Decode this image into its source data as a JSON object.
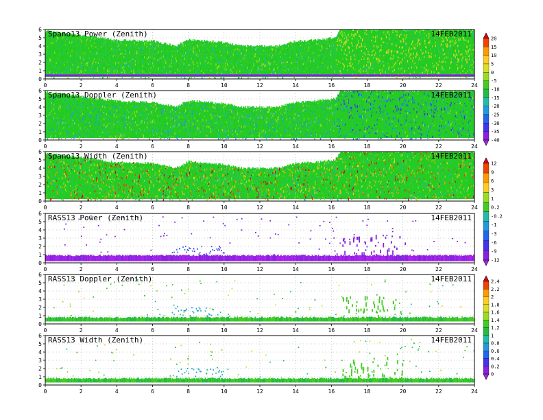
{
  "date": "14FEB2011",
  "xaxis": {
    "range": [
      0,
      24
    ],
    "ticks": [
      0,
      2,
      4,
      6,
      8,
      10,
      12,
      14,
      16,
      18,
      20,
      22,
      24
    ],
    "tick_labels": [
      "0",
      "2",
      "4",
      "6",
      "8",
      "10",
      "12",
      "14",
      "16",
      "18",
      "20",
      "22",
      "24"
    ]
  },
  "yaxis": {
    "range": [
      0,
      6
    ],
    "ticks": [
      0,
      1,
      2,
      3,
      4,
      5,
      6
    ],
    "tick_labels": [
      "0",
      "1",
      "2",
      "3",
      "4",
      "5",
      "6"
    ]
  },
  "chart_data": [
    {
      "type": "heatmap",
      "title": "Spano13 Power (Zenith)",
      "date_label": "14FEB2011",
      "colorbar": "power",
      "xlim": [
        0,
        24
      ],
      "ylim": [
        0,
        6
      ],
      "dominant_color": "#22cc22"
    },
    {
      "type": "heatmap",
      "title": "Spano13 Doppler (Zenith)",
      "date_label": "14FEB2011",
      "colorbar": "power",
      "xlim": [
        0,
        24
      ],
      "ylim": [
        0,
        6
      ],
      "dominant_color": "#22cc22"
    },
    {
      "type": "heatmap",
      "title": "Spano13 Width (Zenith)",
      "date_label": "14FEB2011",
      "colorbar": "width",
      "xlim": [
        0,
        24
      ],
      "ylim": [
        0,
        6
      ],
      "dominant_color": "#22cc22"
    },
    {
      "type": "heatmap",
      "title": "RASS13 Power (Zenith)",
      "date_label": "14FEB2011",
      "colorbar": "width",
      "xlim": [
        0,
        24
      ],
      "ylim": [
        0,
        6
      ],
      "dominant_color": "#8822ee"
    },
    {
      "type": "heatmap",
      "title": "RASS13 Doppler (Zenith)",
      "date_label": "14FEB2011",
      "colorbar": "rass",
      "xlim": [
        0,
        24
      ],
      "ylim": [
        0,
        6
      ],
      "dominant_color": "#22cc22"
    },
    {
      "type": "heatmap",
      "title": "RASS13 Width (Zenith)",
      "date_label": "14FEB2011",
      "colorbar": "rass",
      "xlim": [
        0,
        24
      ],
      "ylim": [
        0,
        6
      ],
      "dominant_color": "#22cc22"
    }
  ],
  "colorbars": {
    "power": {
      "labels": [
        "20",
        "15",
        "10",
        "5",
        "0",
        "-5",
        "-10",
        "-15",
        "-20",
        "-25",
        "-30",
        "-35",
        "-40"
      ],
      "colors": [
        "#dd0022",
        "#ee4400",
        "#ff9900",
        "#ffcc22",
        "#dddd22",
        "#99dd22",
        "#44cc22",
        "#22bb44",
        "#22bbaa",
        "#2299dd",
        "#2266ee",
        "#4433ee",
        "#8822dd",
        "#aa22ee"
      ]
    },
    "width": {
      "labels": [
        "12",
        "9",
        "6",
        "3",
        "1",
        "0.2",
        "-0.2",
        "-1",
        "-3",
        "-6",
        "-9",
        "-12"
      ],
      "colors": [
        "#dd0022",
        "#ee4400",
        "#ff9900",
        "#ffcc22",
        "#99dd22",
        "#44cc22",
        "#22bbaa",
        "#2299dd",
        "#2266ee",
        "#4433ee",
        "#8822dd",
        "#aa22ee"
      ]
    },
    "rass": {
      "labels": [
        "2.4",
        "2.2",
        "2",
        "1.8",
        "1.6",
        "1.4",
        "1.2",
        "1",
        "0.8",
        "0.6",
        "0.4",
        "0.2",
        "0"
      ],
      "colors": [
        "#dd0022",
        "#ee4400",
        "#ff9900",
        "#ffcc22",
        "#dddd22",
        "#99dd22",
        "#44cc22",
        "#22bb44",
        "#22bbaa",
        "#2299dd",
        "#2266ee",
        "#4433ee",
        "#8822dd",
        "#aa22ee"
      ]
    }
  }
}
